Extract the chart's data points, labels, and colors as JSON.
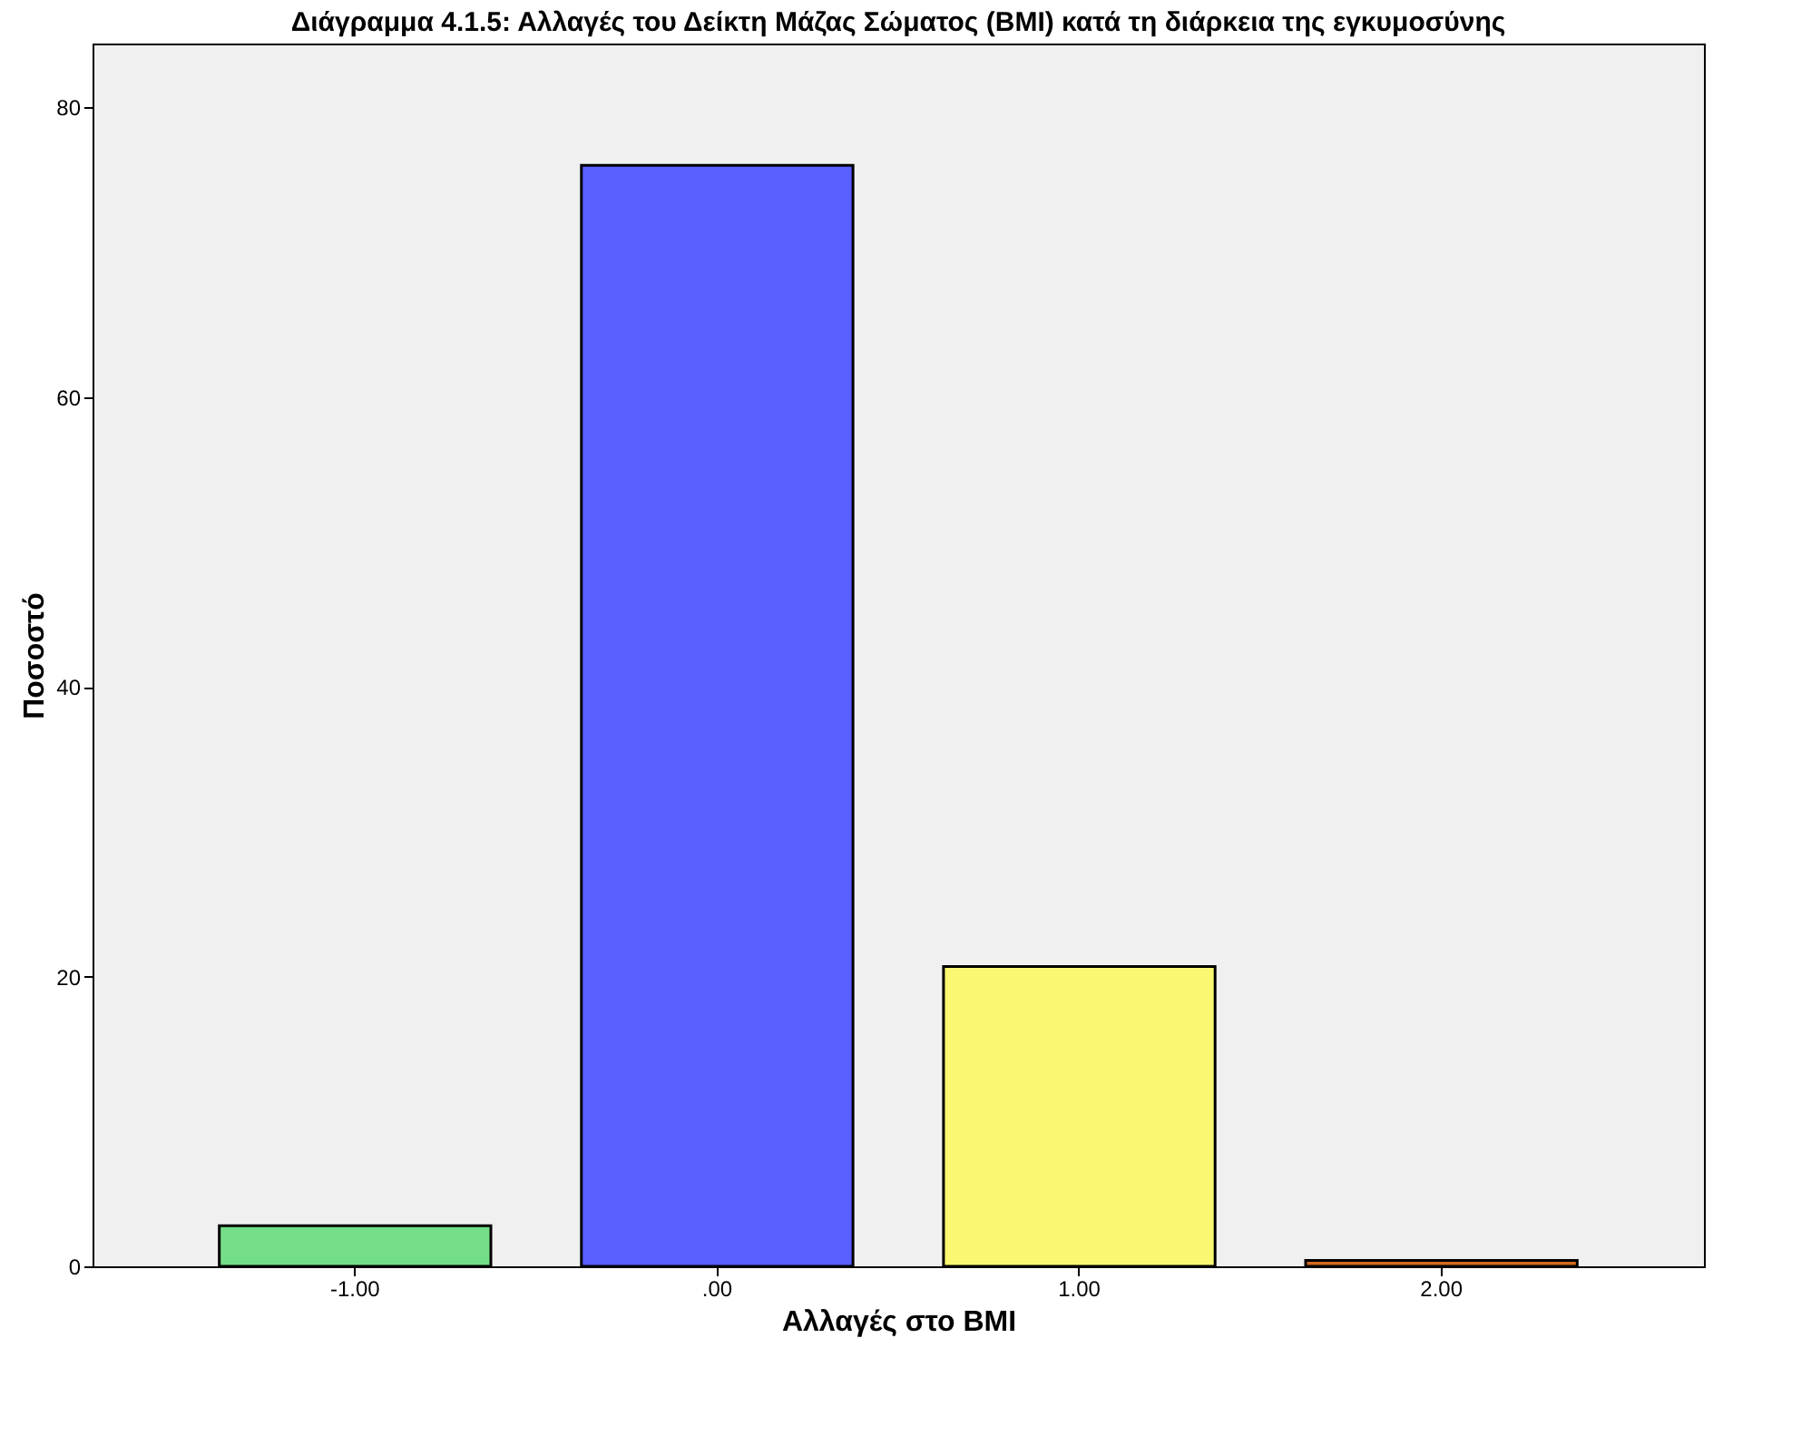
{
  "chart_data": {
    "type": "bar",
    "title": "Διάγραμμα 4.1.5: Αλλαγές του Δείκτη Μάζας Σώματος (BMI) κατά τη διάρκεια της εγκυμοσύνης",
    "xlabel": "Αλλαγές στο BMI",
    "ylabel": "Ποσοστό",
    "categories": [
      "-1.00",
      ".00",
      "1.00",
      "2.00"
    ],
    "values": [
      2.8,
      76.0,
      20.7,
      0.4
    ],
    "colors": [
      "#73de87",
      "#5a5fff",
      "#faf873",
      "#d2691e"
    ],
    "ylim": [
      0,
      84.4
    ],
    "yticks": [
      0,
      20,
      40,
      60,
      80
    ],
    "grid": false,
    "legend": false
  }
}
